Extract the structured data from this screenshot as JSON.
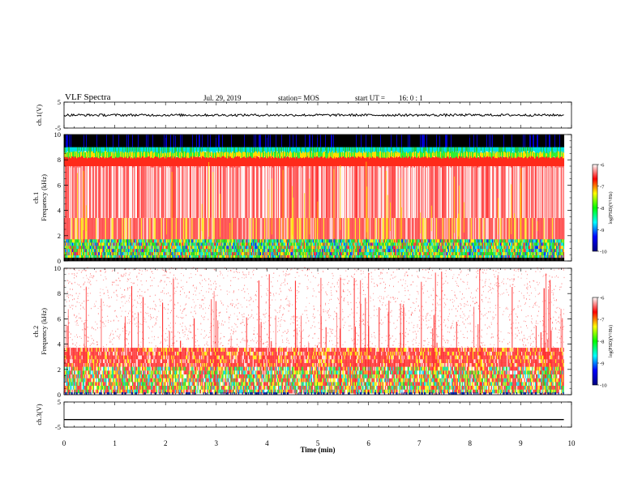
{
  "header": {
    "title": "VLF Spectra",
    "date": "Jul. 29, 2019",
    "station_label": "station= MOS",
    "start_label": "start UT =",
    "start_value": "16: 0 : 1"
  },
  "chart_data": [
    {
      "type": "line",
      "panel": "ch1",
      "ylabel": "ch.1(V)",
      "ylim": [
        -5,
        5
      ],
      "yticks": [
        "5",
        "-5"
      ],
      "series": [
        {
          "values_approx": [
            0,
            0,
            0,
            0,
            0,
            0,
            0,
            0,
            0,
            0,
            0
          ]
        }
      ],
      "note_color": "#000000"
    },
    {
      "type": "heatmap",
      "panel": "ch1-spectrogram",
      "ylabel": "ch.1 Frequency (kHz)",
      "ylim": [
        0,
        10
      ],
      "yticks": [
        "0",
        "2",
        "4",
        "6",
        "8",
        "10"
      ],
      "colorbar": {
        "label": "log(PSD)(V²/Hz)",
        "range": [
          -10,
          -6
        ],
        "ticks": [
          "-6",
          "-7",
          "-8",
          "-9",
          "-10"
        ],
        "colors": [
          "#000080",
          "#0000ff",
          "#00ffff",
          "#00ff00",
          "#ffff00",
          "#ff0000",
          "#ffffff"
        ]
      }
    },
    {
      "type": "heatmap",
      "panel": "ch2-spectrogram",
      "ylabel": "ch.2 Frequency (kHz)",
      "ylim": [
        0,
        10
      ],
      "yticks": [
        "0",
        "2",
        "4",
        "6",
        "8",
        "10"
      ],
      "colorbar": {
        "label": "log(PSD)(V²/Hz)",
        "range": [
          -10,
          -6
        ],
        "ticks": [
          "-6",
          "-7",
          "-8",
          "-9",
          "-10"
        ]
      }
    },
    {
      "type": "line",
      "panel": "ch3",
      "ylabel": "ch.3(V)",
      "ylim": [
        -5,
        5
      ],
      "yticks": [
        "5",
        "-5"
      ],
      "series": [
        {
          "values_approx": [
            -2,
            -2,
            -2,
            -2,
            -2,
            -2,
            -2,
            -2,
            -2,
            -2,
            -2
          ]
        }
      ]
    }
  ],
  "x_axis": {
    "label": "Time (min)",
    "xlim": [
      0,
      10
    ],
    "ticks": [
      "0",
      "1",
      "2",
      "3",
      "4",
      "5",
      "6",
      "7",
      "8",
      "9",
      "10"
    ],
    "data_end": 9.85
  }
}
